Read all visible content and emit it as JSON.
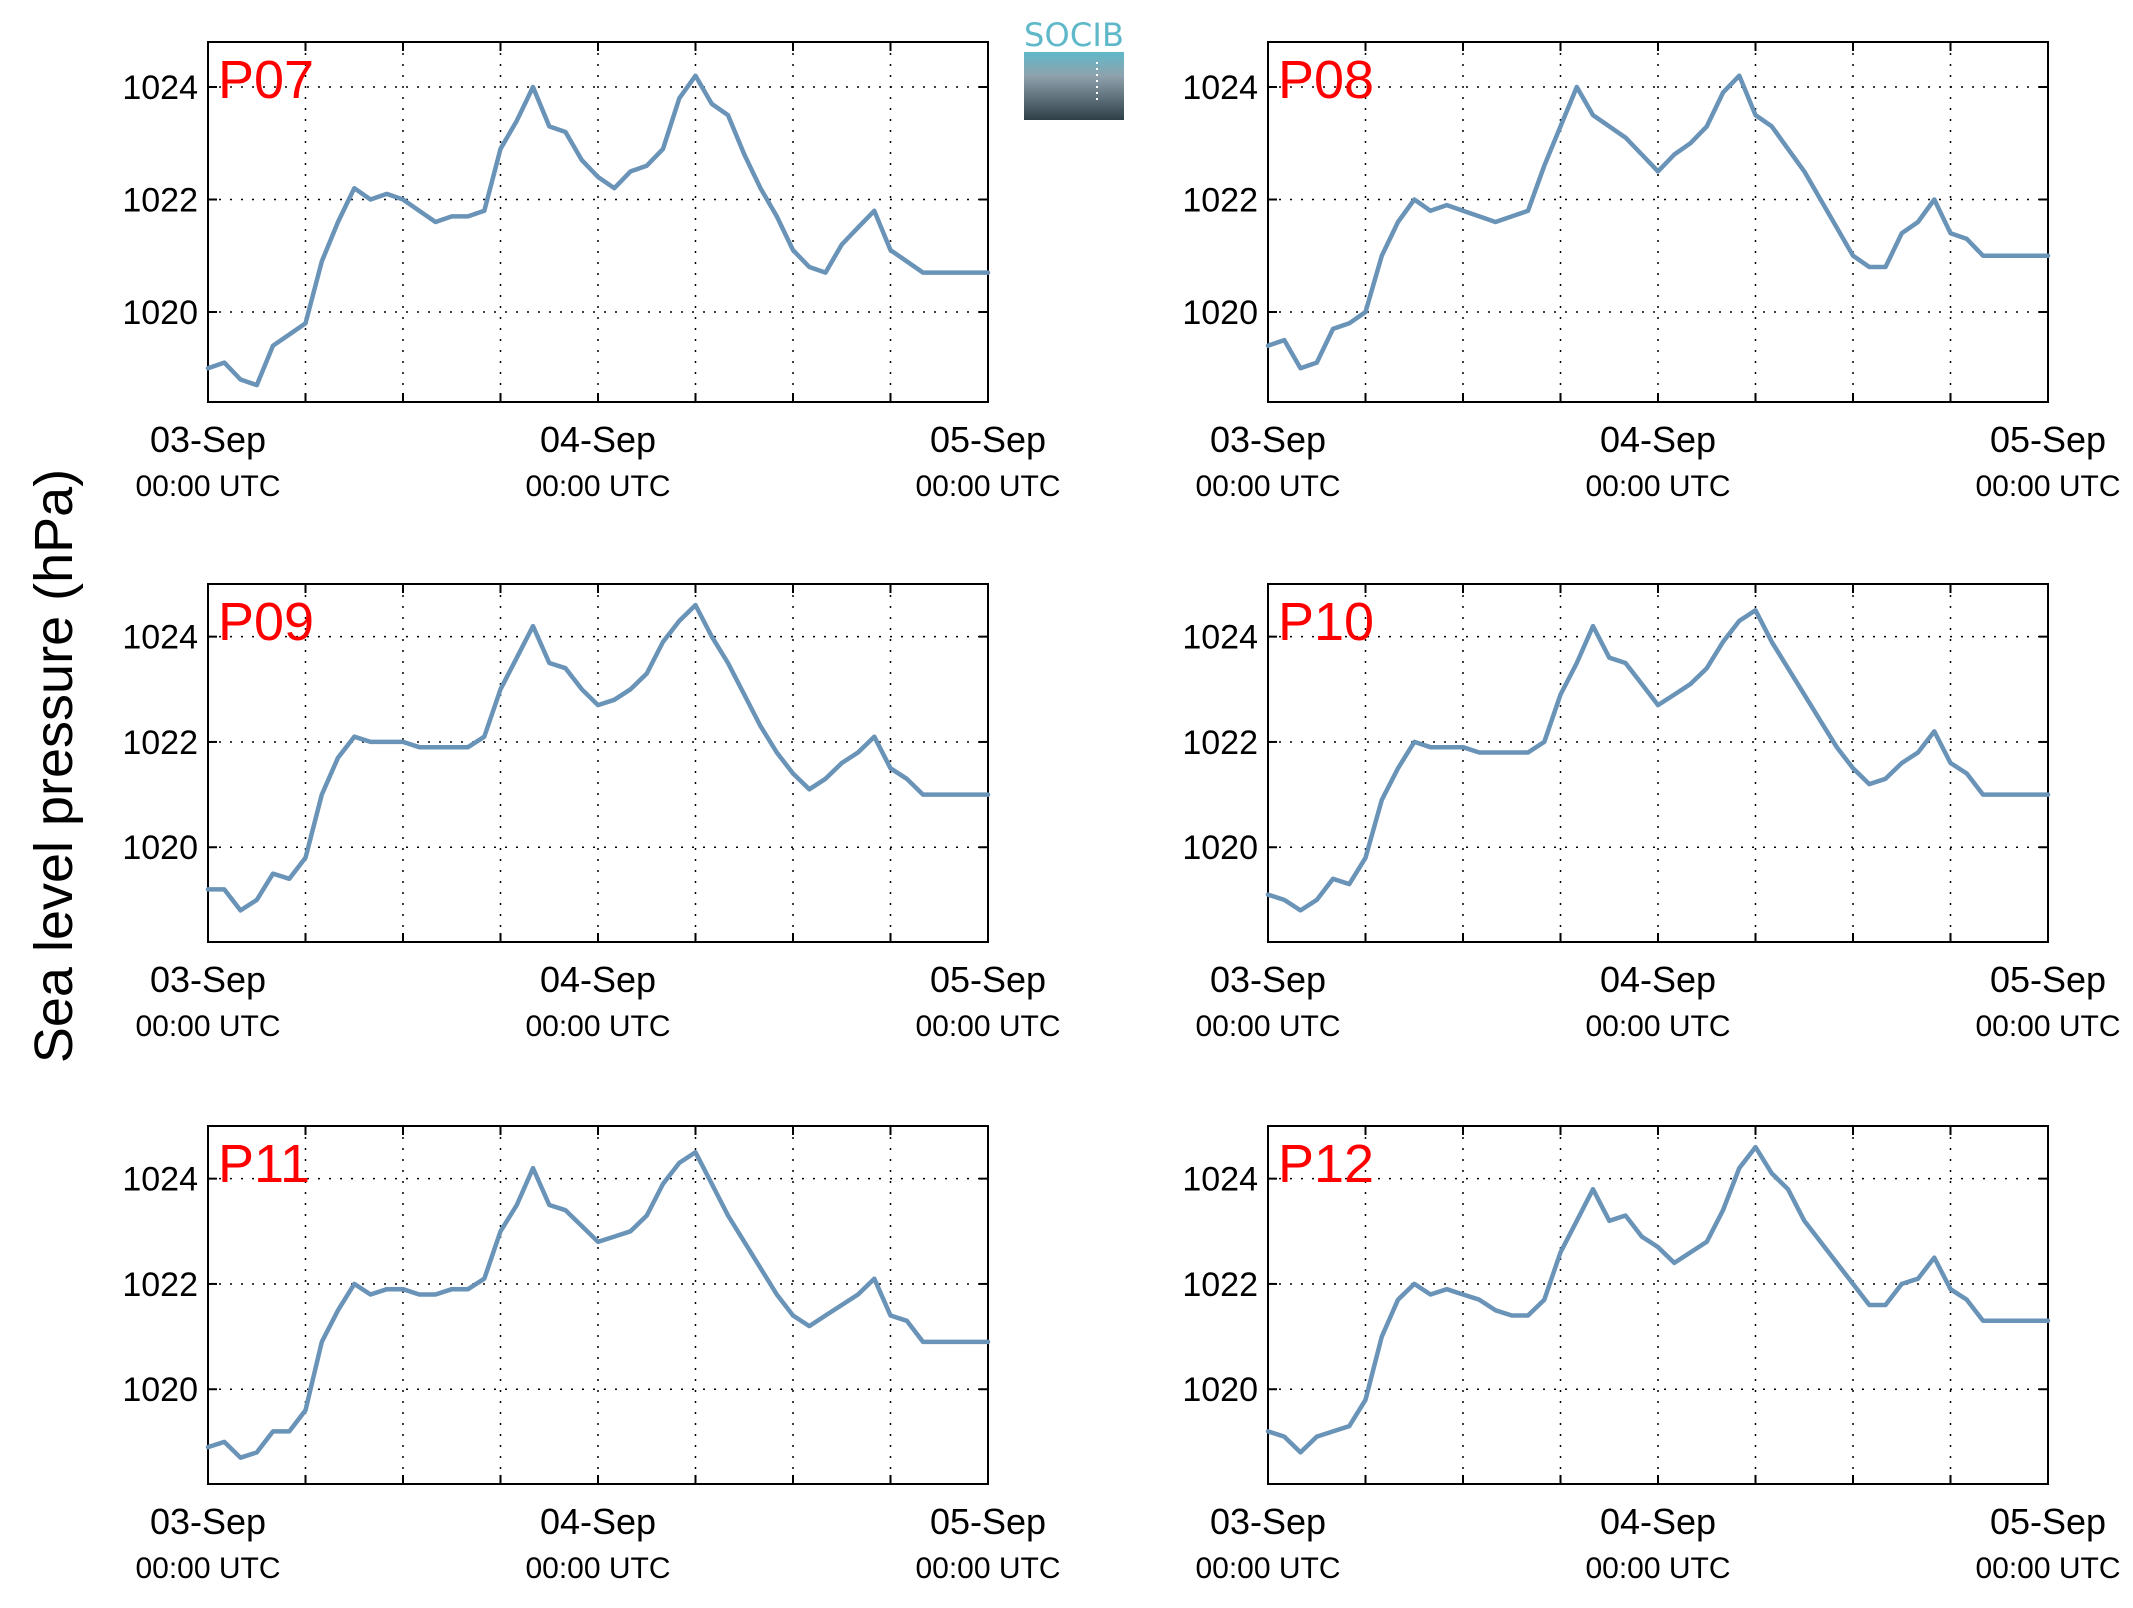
{
  "logo": {
    "text": "SOCIB"
  },
  "y_axis_label": "Sea level pressure (hPa)",
  "colors": {
    "line": "#6a93b8",
    "panel_label": "#ff0000",
    "grid": "#000000",
    "logo_top": "#5fb8c9",
    "logo_bottom": "#2e3f48"
  },
  "chart_data": [
    {
      "type": "line",
      "title": "P07",
      "ylabel": "Sea level pressure (hPa)",
      "ylim": [
        1018.4,
        1024.8
      ],
      "xlim": [
        0,
        48
      ],
      "yticks": [
        1020,
        1022,
        1024
      ],
      "x_ticks": [
        0,
        24,
        48
      ],
      "x_tick_labels": [
        [
          "03-Sep",
          "00:00 UTC"
        ],
        [
          "04-Sep",
          "00:00 UTC"
        ],
        [
          "05-Sep",
          "00:00 UTC"
        ]
      ],
      "x_minor_ticks": [
        6,
        12,
        18,
        30,
        36,
        42
      ],
      "grid": true,
      "x": [
        0,
        1,
        2,
        3,
        4,
        5,
        6,
        7,
        8,
        9,
        10,
        11,
        12,
        13,
        14,
        15,
        16,
        17,
        18,
        19,
        20,
        21,
        22,
        23,
        24,
        25,
        26,
        27,
        28,
        29,
        30,
        31,
        32,
        33,
        34,
        35,
        36,
        37,
        38,
        39,
        40,
        41,
        42,
        43,
        44,
        45,
        46,
        47,
        48
      ],
      "values": [
        1019.0,
        1019.1,
        1018.8,
        1018.7,
        1019.4,
        1019.6,
        1019.8,
        1020.9,
        1021.6,
        1022.2,
        1022.0,
        1022.1,
        1022.0,
        1021.8,
        1021.6,
        1021.7,
        1021.7,
        1021.8,
        1022.9,
        1023.4,
        1024.0,
        1023.3,
        1023.2,
        1022.7,
        1022.4,
        1022.2,
        1022.5,
        1022.6,
        1022.9,
        1023.8,
        1024.2,
        1023.7,
        1023.5,
        1022.8,
        1022.2,
        1021.7,
        1021.1,
        1020.8,
        1020.7,
        1021.2,
        1021.5,
        1021.8,
        1021.1,
        1020.9,
        1020.7,
        1020.7,
        1020.7,
        1020.7,
        1020.7
      ]
    },
    {
      "type": "line",
      "title": "P08",
      "ylabel": "Sea level pressure (hPa)",
      "ylim": [
        1018.4,
        1024.8
      ],
      "xlim": [
        0,
        48
      ],
      "yticks": [
        1020,
        1022,
        1024
      ],
      "x_ticks": [
        0,
        24,
        48
      ],
      "x_tick_labels": [
        [
          "03-Sep",
          "00:00 UTC"
        ],
        [
          "04-Sep",
          "00:00 UTC"
        ],
        [
          "05-Sep",
          "00:00 UTC"
        ]
      ],
      "x_minor_ticks": [
        6,
        12,
        18,
        30,
        36,
        42
      ],
      "grid": true,
      "x": [
        0,
        1,
        2,
        3,
        4,
        5,
        6,
        7,
        8,
        9,
        10,
        11,
        12,
        13,
        14,
        15,
        16,
        17,
        18,
        19,
        20,
        21,
        22,
        23,
        24,
        25,
        26,
        27,
        28,
        29,
        30,
        31,
        32,
        33,
        34,
        35,
        36,
        37,
        38,
        39,
        40,
        41,
        42,
        43,
        44,
        45,
        46,
        47,
        48
      ],
      "values": [
        1019.4,
        1019.5,
        1019.0,
        1019.1,
        1019.7,
        1019.8,
        1020.0,
        1021.0,
        1021.6,
        1022.0,
        1021.8,
        1021.9,
        1021.8,
        1021.7,
        1021.6,
        1021.7,
        1021.8,
        1022.6,
        1023.3,
        1024.0,
        1023.5,
        1023.3,
        1023.1,
        1022.8,
        1022.5,
        1022.8,
        1023.0,
        1023.3,
        1023.9,
        1024.2,
        1023.5,
        1023.3,
        1022.9,
        1022.5,
        1022.0,
        1021.5,
        1021.0,
        1020.8,
        1020.8,
        1021.4,
        1021.6,
        1022.0,
        1021.4,
        1021.3,
        1021.0,
        1021.0,
        1021.0,
        1021.0,
        1021.0
      ]
    },
    {
      "type": "line",
      "title": "P09",
      "ylabel": "Sea level pressure (hPa)",
      "ylim": [
        1018.2,
        1025.0
      ],
      "xlim": [
        0,
        48
      ],
      "yticks": [
        1020,
        1022,
        1024
      ],
      "x_ticks": [
        0,
        24,
        48
      ],
      "x_tick_labels": [
        [
          "03-Sep",
          "00:00 UTC"
        ],
        [
          "04-Sep",
          "00:00 UTC"
        ],
        [
          "05-Sep",
          "00:00 UTC"
        ]
      ],
      "x_minor_ticks": [
        6,
        12,
        18,
        30,
        36,
        42
      ],
      "grid": true,
      "x": [
        0,
        1,
        2,
        3,
        4,
        5,
        6,
        7,
        8,
        9,
        10,
        11,
        12,
        13,
        14,
        15,
        16,
        17,
        18,
        19,
        20,
        21,
        22,
        23,
        24,
        25,
        26,
        27,
        28,
        29,
        30,
        31,
        32,
        33,
        34,
        35,
        36,
        37,
        38,
        39,
        40,
        41,
        42,
        43,
        44,
        45,
        46,
        47,
        48
      ],
      "values": [
        1019.2,
        1019.2,
        1018.8,
        1019.0,
        1019.5,
        1019.4,
        1019.8,
        1021.0,
        1021.7,
        1022.1,
        1022.0,
        1022.0,
        1022.0,
        1021.9,
        1021.9,
        1021.9,
        1021.9,
        1022.1,
        1023.0,
        1023.6,
        1024.2,
        1023.5,
        1023.4,
        1023.0,
        1022.7,
        1022.8,
        1023.0,
        1023.3,
        1023.9,
        1024.3,
        1024.6,
        1024.0,
        1023.5,
        1022.9,
        1022.3,
        1021.8,
        1021.4,
        1021.1,
        1021.3,
        1021.6,
        1021.8,
        1022.1,
        1021.5,
        1021.3,
        1021.0,
        1021.0,
        1021.0,
        1021.0,
        1021.0
      ]
    },
    {
      "type": "line",
      "title": "P10",
      "ylabel": "Sea level pressure (hPa)",
      "ylim": [
        1018.2,
        1025.0
      ],
      "xlim": [
        0,
        48
      ],
      "yticks": [
        1020,
        1022,
        1024
      ],
      "x_ticks": [
        0,
        24,
        48
      ],
      "x_tick_labels": [
        [
          "03-Sep",
          "00:00 UTC"
        ],
        [
          "04-Sep",
          "00:00 UTC"
        ],
        [
          "05-Sep",
          "00:00 UTC"
        ]
      ],
      "x_minor_ticks": [
        6,
        12,
        18,
        30,
        36,
        42
      ],
      "grid": true,
      "x": [
        0,
        1,
        2,
        3,
        4,
        5,
        6,
        7,
        8,
        9,
        10,
        11,
        12,
        13,
        14,
        15,
        16,
        17,
        18,
        19,
        20,
        21,
        22,
        23,
        24,
        25,
        26,
        27,
        28,
        29,
        30,
        31,
        32,
        33,
        34,
        35,
        36,
        37,
        38,
        39,
        40,
        41,
        42,
        43,
        44,
        45,
        46,
        47,
        48
      ],
      "values": [
        1019.1,
        1019.0,
        1018.8,
        1019.0,
        1019.4,
        1019.3,
        1019.8,
        1020.9,
        1021.5,
        1022.0,
        1021.9,
        1021.9,
        1021.9,
        1021.8,
        1021.8,
        1021.8,
        1021.8,
        1022.0,
        1022.9,
        1023.5,
        1024.2,
        1023.6,
        1023.5,
        1023.1,
        1022.7,
        1022.9,
        1023.1,
        1023.4,
        1023.9,
        1024.3,
        1024.5,
        1023.9,
        1023.4,
        1022.9,
        1022.4,
        1021.9,
        1021.5,
        1021.2,
        1021.3,
        1021.6,
        1021.8,
        1022.2,
        1021.6,
        1021.4,
        1021.0,
        1021.0,
        1021.0,
        1021.0,
        1021.0
      ]
    },
    {
      "type": "line",
      "title": "P11",
      "ylabel": "Sea level pressure (hPa)",
      "ylim": [
        1018.2,
        1025.0
      ],
      "xlim": [
        0,
        48
      ],
      "yticks": [
        1020,
        1022,
        1024
      ],
      "x_ticks": [
        0,
        24,
        48
      ],
      "x_tick_labels": [
        [
          "03-Sep",
          "00:00 UTC"
        ],
        [
          "04-Sep",
          "00:00 UTC"
        ],
        [
          "05-Sep",
          "00:00 UTC"
        ]
      ],
      "x_minor_ticks": [
        6,
        12,
        18,
        30,
        36,
        42
      ],
      "grid": true,
      "x": [
        0,
        1,
        2,
        3,
        4,
        5,
        6,
        7,
        8,
        9,
        10,
        11,
        12,
        13,
        14,
        15,
        16,
        17,
        18,
        19,
        20,
        21,
        22,
        23,
        24,
        25,
        26,
        27,
        28,
        29,
        30,
        31,
        32,
        33,
        34,
        35,
        36,
        37,
        38,
        39,
        40,
        41,
        42,
        43,
        44,
        45,
        46,
        47,
        48
      ],
      "values": [
        1018.9,
        1019.0,
        1018.7,
        1018.8,
        1019.2,
        1019.2,
        1019.6,
        1020.9,
        1021.5,
        1022.0,
        1021.8,
        1021.9,
        1021.9,
        1021.8,
        1021.8,
        1021.9,
        1021.9,
        1022.1,
        1023.0,
        1023.5,
        1024.2,
        1023.5,
        1023.4,
        1023.1,
        1022.8,
        1022.9,
        1023.0,
        1023.3,
        1023.9,
        1024.3,
        1024.5,
        1023.9,
        1023.3,
        1022.8,
        1022.3,
        1021.8,
        1021.4,
        1021.2,
        1021.4,
        1021.6,
        1021.8,
        1022.1,
        1021.4,
        1021.3,
        1020.9,
        1020.9,
        1020.9,
        1020.9,
        1020.9
      ]
    },
    {
      "type": "line",
      "title": "P12",
      "ylabel": "Sea level pressure (hPa)",
      "ylim": [
        1018.2,
        1025.0
      ],
      "xlim": [
        0,
        48
      ],
      "yticks": [
        1020,
        1022,
        1024
      ],
      "x_ticks": [
        0,
        24,
        48
      ],
      "x_tick_labels": [
        [
          "03-Sep",
          "00:00 UTC"
        ],
        [
          "04-Sep",
          "00:00 UTC"
        ],
        [
          "05-Sep",
          "00:00 UTC"
        ]
      ],
      "x_minor_ticks": [
        6,
        12,
        18,
        30,
        36,
        42
      ],
      "grid": true,
      "x": [
        0,
        1,
        2,
        3,
        4,
        5,
        6,
        7,
        8,
        9,
        10,
        11,
        12,
        13,
        14,
        15,
        16,
        17,
        18,
        19,
        20,
        21,
        22,
        23,
        24,
        25,
        26,
        27,
        28,
        29,
        30,
        31,
        32,
        33,
        34,
        35,
        36,
        37,
        38,
        39,
        40,
        41,
        42,
        43,
        44,
        45,
        46,
        47,
        48
      ],
      "values": [
        1019.2,
        1019.1,
        1018.8,
        1019.1,
        1019.2,
        1019.3,
        1019.8,
        1021.0,
        1021.7,
        1022.0,
        1021.8,
        1021.9,
        1021.8,
        1021.7,
        1021.5,
        1021.4,
        1021.4,
        1021.7,
        1022.6,
        1023.2,
        1023.8,
        1023.2,
        1023.3,
        1022.9,
        1022.7,
        1022.4,
        1022.6,
        1022.8,
        1023.4,
        1024.2,
        1024.6,
        1024.1,
        1023.8,
        1023.2,
        1022.8,
        1022.4,
        1022.0,
        1021.6,
        1021.6,
        1022.0,
        1022.1,
        1022.5,
        1021.9,
        1021.7,
        1021.3,
        1021.3,
        1021.3,
        1021.3,
        1021.3
      ]
    }
  ]
}
